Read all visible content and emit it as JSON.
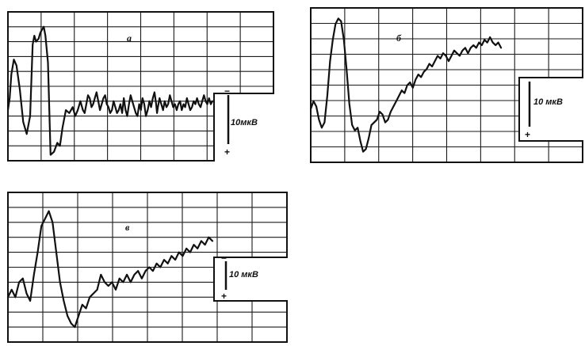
{
  "chart_data": [
    {
      "type": "line",
      "panel_label": "а",
      "scale_label": "10мкВ",
      "scale_top_mark": "−",
      "scale_bottom_mark": "+",
      "grid": true,
      "x": [
        0.0,
        0.1,
        0.2,
        0.35,
        0.5,
        0.7,
        0.9,
        1.1,
        1.3,
        1.45,
        1.55,
        1.65,
        1.8,
        1.9,
        2.0,
        2.1,
        2.2,
        2.35,
        2.5,
        2.7,
        2.9,
        3.05,
        3.2,
        3.4,
        3.6,
        3.8,
        3.95,
        4.1,
        4.25,
        4.4,
        4.5,
        4.6,
        4.7,
        4.8,
        4.9,
        5.0,
        5.1,
        5.2,
        5.3,
        5.4,
        5.5,
        5.6,
        5.7,
        5.8,
        5.9,
        6.0,
        6.1,
        6.2,
        6.3,
        6.4,
        6.5,
        6.6,
        6.7,
        6.8,
        6.9,
        7.0,
        7.1,
        7.2,
        7.3,
        7.4,
        7.5,
        7.6,
        7.7,
        7.8,
        7.9,
        8.0,
        8.1,
        8.2,
        8.3,
        8.4,
        8.5,
        8.6,
        8.7,
        8.75,
        8.8,
        8.9,
        9.0,
        9.1,
        9.2,
        9.3,
        9.4,
        9.5,
        9.6,
        9.7,
        9.8,
        9.9,
        10.0,
        10.1,
        10.2,
        10.3,
        10.4,
        10.5,
        10.6,
        10.7,
        10.8,
        10.9,
        11.0,
        11.1,
        11.2,
        11.3,
        11.4,
        11.5,
        11.6,
        11.7,
        11.8,
        11.9,
        12.0
      ],
      "y": [
        1.0,
        1.4,
        2.2,
        2.7,
        2.5,
        1.7,
        0.6,
        0.2,
        0.8,
        3.2,
        3.5,
        3.3,
        3.4,
        3.6,
        3.7,
        3.8,
        3.5,
        2.6,
        -0.5,
        -0.4,
        -0.1,
        -0.2,
        0.4,
        1.0,
        0.9,
        1.1,
        0.8,
        1.0,
        1.3,
        1.0,
        0.9,
        1.2,
        1.5,
        1.4,
        1.1,
        1.2,
        1.4,
        1.6,
        1.3,
        1.0,
        1.2,
        1.4,
        1.5,
        1.2,
        1.1,
        0.9,
        1.0,
        1.3,
        1.1,
        0.9,
        1.0,
        1.2,
        0.9,
        1.4,
        1.0,
        0.8,
        1.2,
        1.5,
        1.3,
        1.1,
        0.9,
        0.8,
        1.2,
        1.0,
        1.4,
        1.2,
        0.8,
        1.0,
        1.3,
        1.1,
        1.4,
        1.6,
        1.2,
        0.9,
        1.1,
        1.4,
        1.2,
        1.0,
        1.3,
        1.1,
        1.2,
        1.5,
        1.3,
        1.1,
        1.2,
        1.0,
        1.2,
        1.3,
        1.0,
        1.2,
        1.1,
        1.4,
        1.2,
        1.0,
        1.1,
        1.3,
        1.2,
        1.4,
        1.2,
        1.1,
        1.3,
        1.5,
        1.3,
        1.2,
        1.4,
        1.2,
        1.3
      ],
      "xlim": [
        0,
        12
      ],
      "ylim": [
        -0.7,
        4.3
      ]
    },
    {
      "type": "line",
      "panel_label": "б",
      "scale_label": "10 мкВ",
      "scale_top_mark": "−",
      "scale_bottom_mark": "+",
      "grid": true,
      "x": [
        0.0,
        0.2,
        0.4,
        0.6,
        0.8,
        1.0,
        1.2,
        1.4,
        1.6,
        1.8,
        2.0,
        2.2,
        2.4,
        2.6,
        2.8,
        3.0,
        3.2,
        3.4,
        3.6,
        3.8,
        4.0,
        4.2,
        4.4,
        4.6,
        4.8,
        5.0,
        5.2,
        5.4,
        5.6,
        5.8,
        6.0,
        6.2,
        6.4,
        6.6,
        6.8,
        7.0,
        7.2,
        7.4,
        7.6,
        7.8,
        8.0,
        8.2,
        8.4,
        8.6,
        8.8,
        9.0,
        9.2,
        9.4,
        9.6,
        9.8,
        10.0,
        10.2,
        10.4,
        10.6,
        10.8,
        11.0,
        11.2,
        11.4,
        11.6,
        11.8,
        12.0,
        12.2,
        12.4,
        12.6,
        12.8,
        13.0,
        13.2,
        13.4,
        13.6,
        13.8
      ],
      "y": [
        1.0,
        1.3,
        1.1,
        0.6,
        0.3,
        0.5,
        1.5,
        2.8,
        3.6,
        4.2,
        4.4,
        4.3,
        3.6,
        2.5,
        1.2,
        0.4,
        0.2,
        0.3,
        -0.2,
        -0.6,
        -0.5,
        -0.1,
        0.4,
        0.5,
        0.6,
        0.9,
        0.8,
        0.5,
        0.6,
        0.9,
        1.1,
        1.3,
        1.5,
        1.7,
        1.6,
        1.9,
        2.0,
        1.8,
        2.1,
        2.3,
        2.2,
        2.4,
        2.5,
        2.7,
        2.6,
        2.8,
        3.0,
        2.9,
        3.1,
        3.0,
        2.8,
        3.0,
        3.2,
        3.1,
        3.0,
        3.2,
        3.3,
        3.1,
        3.3,
        3.4,
        3.3,
        3.5,
        3.4,
        3.6,
        3.5,
        3.7,
        3.5,
        3.4,
        3.5,
        3.3
      ],
      "xlim": [
        0,
        15
      ],
      "ylim": [
        -1.0,
        4.8
      ]
    },
    {
      "type": "line",
      "panel_label": "в",
      "scale_label": "10 мкВ",
      "scale_top_mark": "−",
      "scale_bottom_mark": "+",
      "grid": true,
      "x": [
        0.0,
        0.2,
        0.4,
        0.6,
        0.8,
        1.0,
        1.2,
        1.4,
        1.6,
        1.8,
        2.0,
        2.2,
        2.4,
        2.6,
        2.8,
        3.0,
        3.2,
        3.4,
        3.6,
        3.8,
        4.0,
        4.2,
        4.4,
        4.6,
        4.8,
        5.0,
        5.2,
        5.4,
        5.6,
        5.8,
        6.0,
        6.2,
        6.4,
        6.6,
        6.8,
        7.0,
        7.2,
        7.4,
        7.6,
        7.8,
        8.0,
        8.2,
        8.4,
        8.6,
        8.8,
        9.0,
        9.2,
        9.4,
        9.6,
        9.8,
        10.0,
        10.2,
        10.4,
        10.6,
        10.8,
        11.0
      ],
      "y": [
        0.6,
        0.8,
        0.6,
        1.0,
        1.1,
        0.7,
        0.5,
        1.2,
        1.8,
        2.5,
        2.7,
        2.9,
        2.6,
        1.8,
        1.0,
        0.5,
        0.1,
        -0.1,
        -0.2,
        0.1,
        0.4,
        0.3,
        0.6,
        0.7,
        0.8,
        1.2,
        1.0,
        0.9,
        1.0,
        0.8,
        1.1,
        1.0,
        1.2,
        1.0,
        1.2,
        1.3,
        1.1,
        1.3,
        1.4,
        1.3,
        1.5,
        1.4,
        1.6,
        1.5,
        1.7,
        1.6,
        1.8,
        1.7,
        1.9,
        1.8,
        2.0,
        1.9,
        2.1,
        2.0,
        2.2,
        2.1
      ],
      "xlim": [
        0,
        11
      ],
      "ylim": [
        -0.6,
        3.4
      ]
    }
  ]
}
